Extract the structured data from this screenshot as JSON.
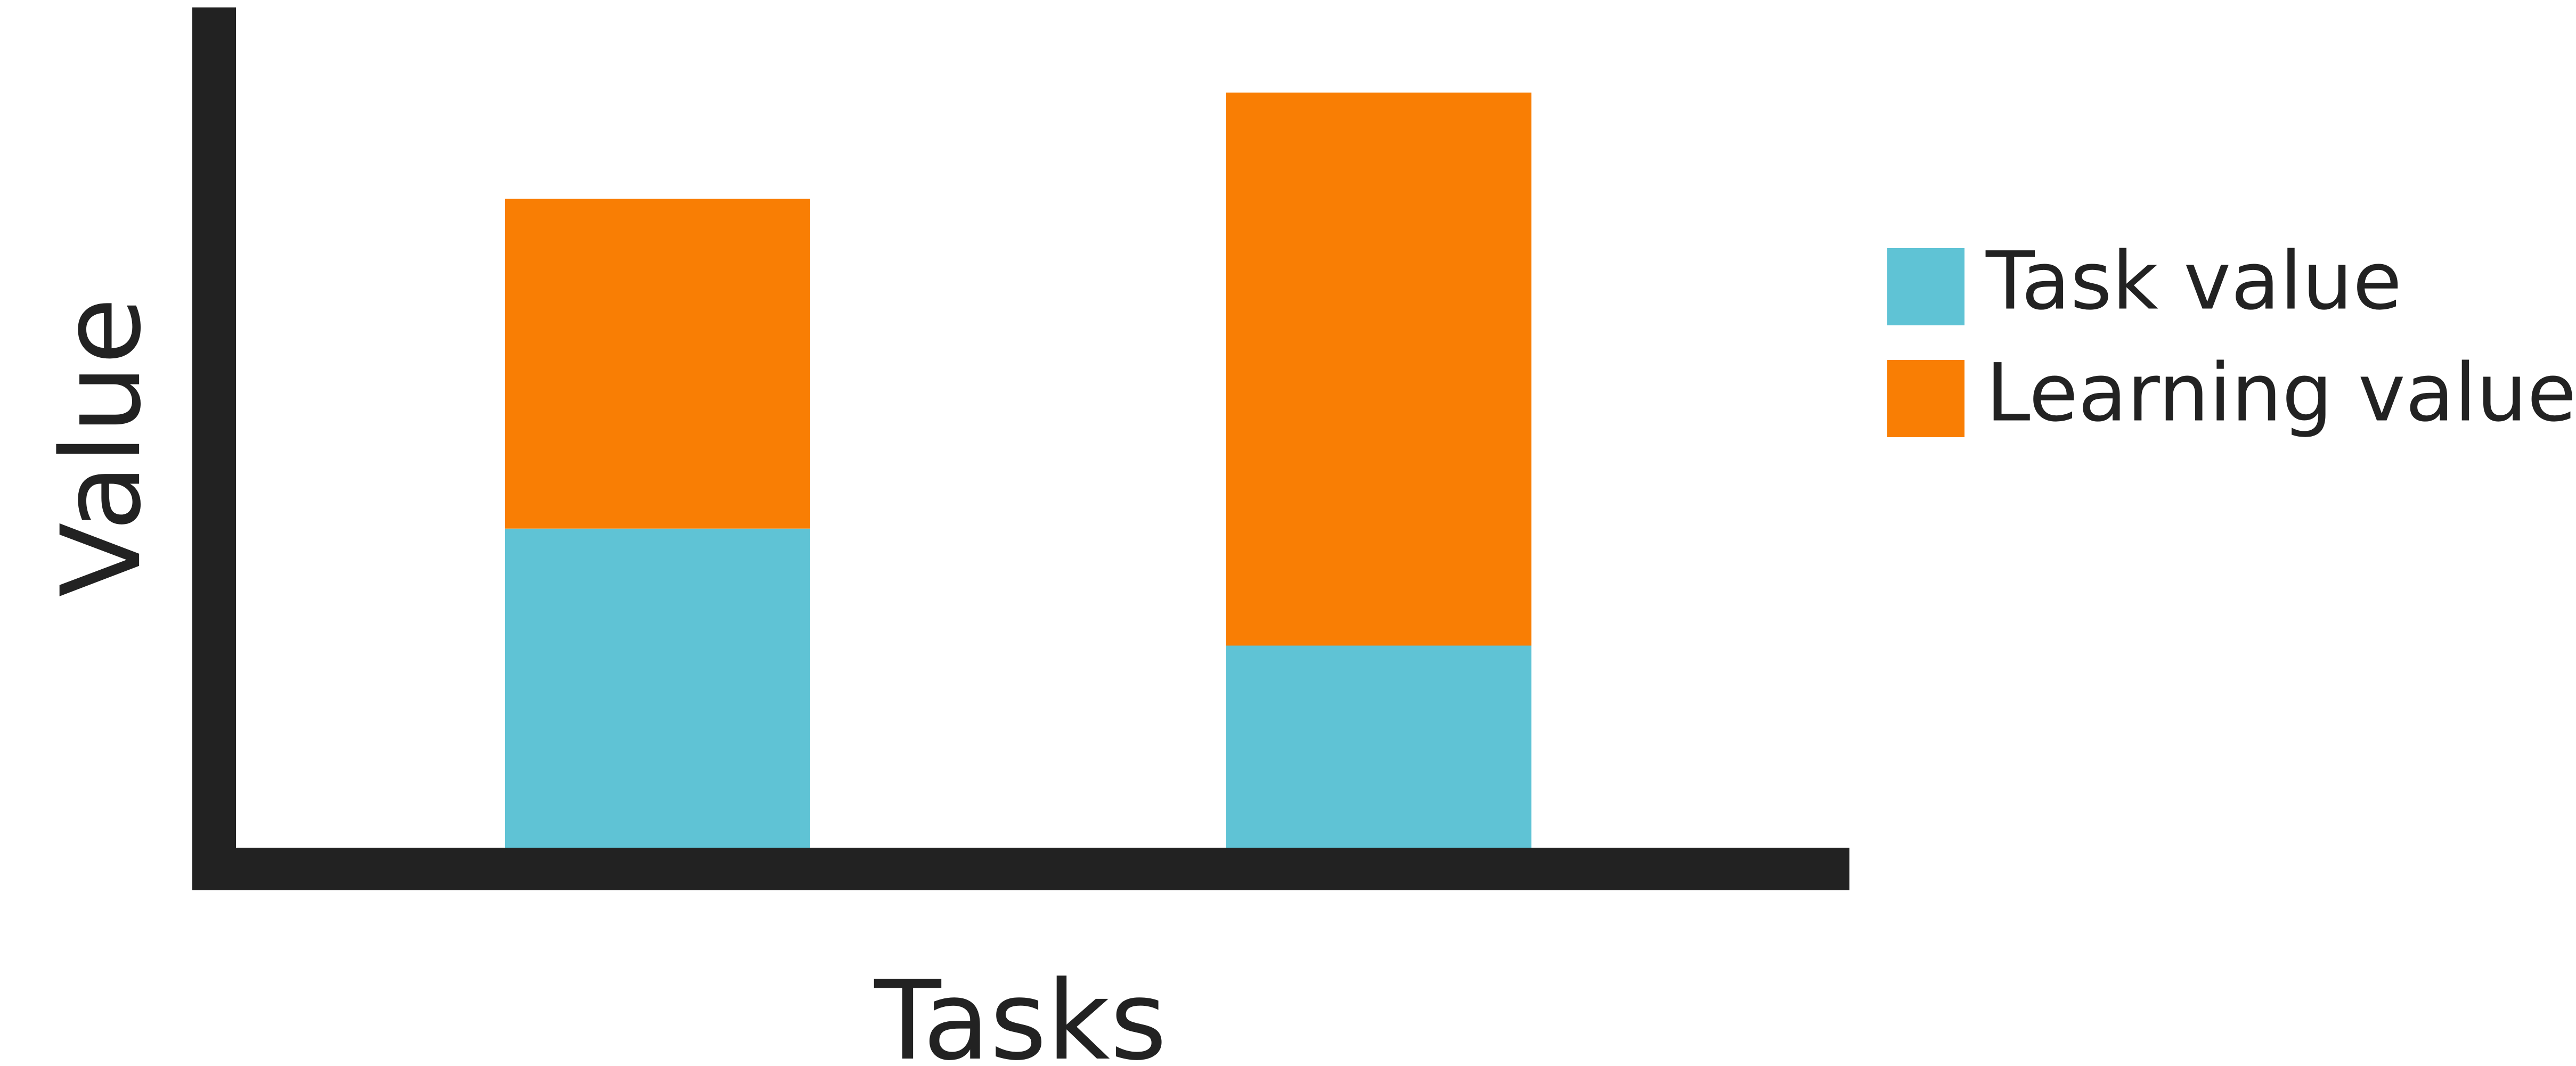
{
  "chart_data": {
    "type": "bar",
    "stacked": true,
    "categories": [
      "",
      ""
    ],
    "series": [
      {
        "name": "Task value",
        "values": [
          3,
          1.9
        ],
        "color": "#5fc3d5"
      },
      {
        "name": "Learning value",
        "values": [
          3.1,
          5.2
        ],
        "color": "#f97e04"
      }
    ],
    "xlabel": "Tasks",
    "ylabel": "Value",
    "ylim": [
      0,
      7.9
    ],
    "grid": false,
    "legend": "right",
    "axis_color": "#222222"
  }
}
